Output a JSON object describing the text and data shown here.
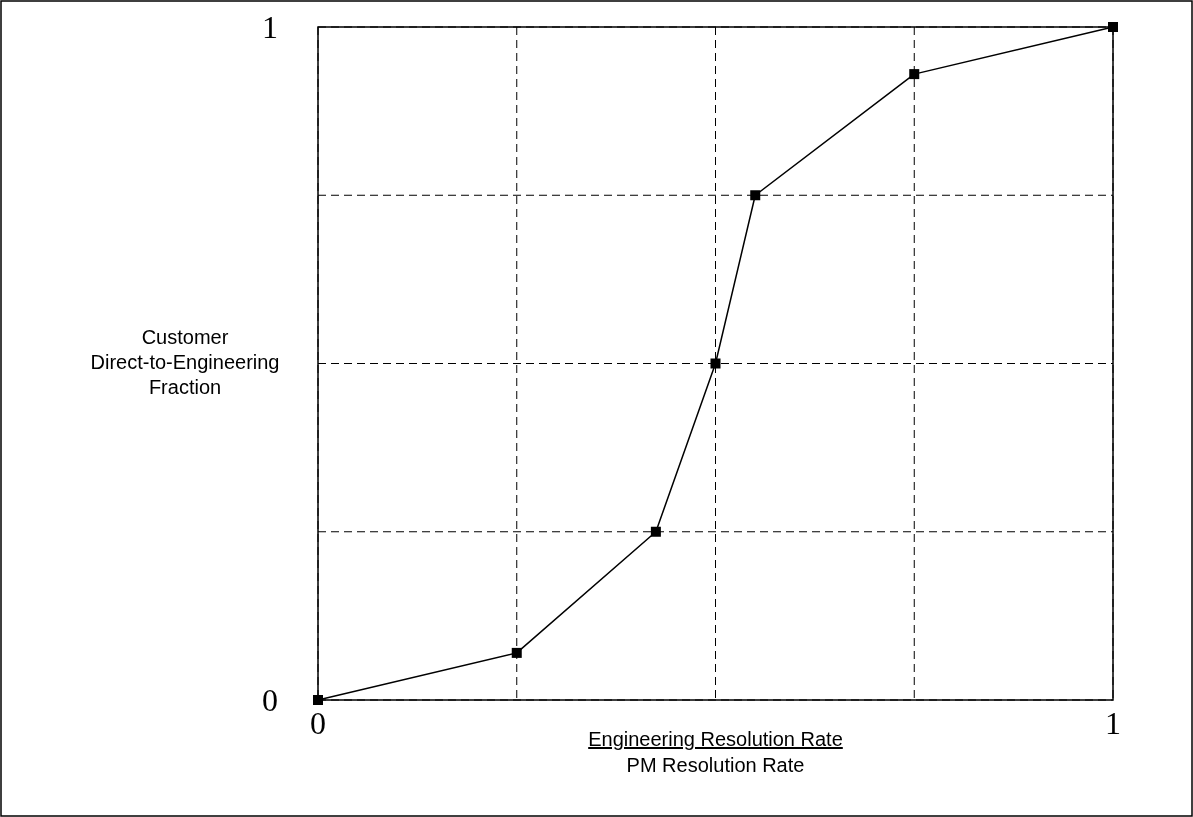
{
  "chart_data": {
    "type": "line",
    "xlabel": "Engineering Resolution Rate\nPM Resolution Rate",
    "ylabel": "Customer\nDirect-to-Engineering\nFraction",
    "x": [
      0,
      0.25,
      0.425,
      0.5,
      0.55,
      0.75,
      1
    ],
    "series": [
      {
        "color": "#000000",
        "values": [
          0,
          0.07,
          0.25,
          0.5,
          0.75,
          0.93,
          1
        ]
      }
    ],
    "xlim": [
      0,
      1
    ],
    "ylim": [
      0,
      1
    ],
    "xticks": [
      0,
      {
        "value": 0.25,
        "label": null
      },
      {
        "value": 0.5,
        "label": null
      },
      {
        "value": 0.75,
        "label": null
      },
      1
    ],
    "yticks": [
      0,
      {
        "value": 0.25,
        "label": null
      },
      {
        "value": 0.5,
        "label": null
      },
      {
        "value": 0.75,
        "label": null
      },
      1
    ],
    "grid": true,
    "marker": "square",
    "line_style": "solid"
  }
}
